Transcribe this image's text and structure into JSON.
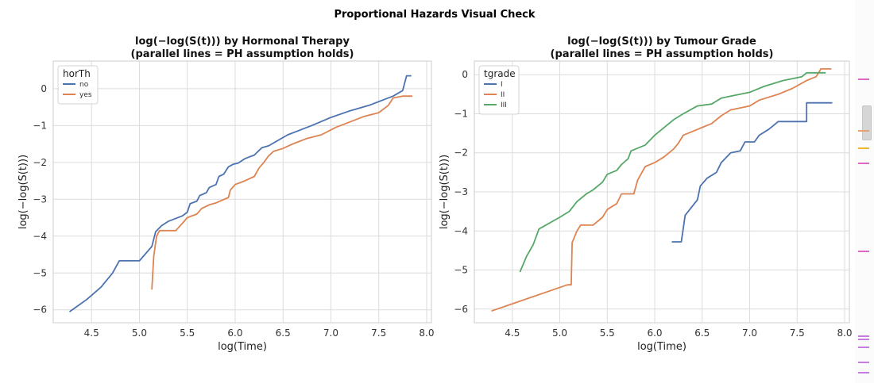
{
  "figure": {
    "suptitle": "Proportional Hazards Visual Check"
  },
  "chart_data": [
    {
      "type": "line",
      "title": "log(−log(S(t))) by Hormonal Therapy",
      "subtitle": "(parallel lines = PH assumption holds)",
      "xlabel": "log(Time)",
      "ylabel": "log(−log(S(t)))",
      "xlim": [
        4.1,
        8.05
      ],
      "ylim": [
        -6.35,
        0.75
      ],
      "xticks": [
        4.5,
        5.0,
        5.5,
        6.0,
        6.5,
        7.0,
        7.5,
        8.0
      ],
      "xtick_labels": [
        "4.5",
        "5.0",
        "5.5",
        "6.0",
        "6.5",
        "7.0",
        "7.5",
        "8.0"
      ],
      "yticks": [
        -6,
        -5,
        -4,
        -3,
        -2,
        -1,
        0
      ],
      "ytick_labels": [
        "−6",
        "−5",
        "−4",
        "−3",
        "−2",
        "−1",
        "0"
      ],
      "grid": true,
      "legend": {
        "title": "horTh",
        "position": "top-left"
      },
      "series": [
        {
          "name": "no",
          "color": "#4c72b0",
          "points": [
            [
              4.27,
              -6.05
            ],
            [
              4.45,
              -5.72
            ],
            [
              4.6,
              -5.38
            ],
            [
              4.72,
              -5.0
            ],
            [
              4.79,
              -4.67
            ],
            [
              5.0,
              -4.67
            ],
            [
              5.13,
              -4.28
            ],
            [
              5.17,
              -3.88
            ],
            [
              5.23,
              -3.72
            ],
            [
              5.3,
              -3.6
            ],
            [
              5.45,
              -3.45
            ],
            [
              5.5,
              -3.35
            ],
            [
              5.53,
              -3.12
            ],
            [
              5.6,
              -3.05
            ],
            [
              5.63,
              -2.9
            ],
            [
              5.7,
              -2.82
            ],
            [
              5.73,
              -2.68
            ],
            [
              5.8,
              -2.6
            ],
            [
              5.83,
              -2.38
            ],
            [
              5.88,
              -2.32
            ],
            [
              5.93,
              -2.12
            ],
            [
              5.98,
              -2.05
            ],
            [
              6.03,
              -2.02
            ],
            [
              6.1,
              -1.9
            ],
            [
              6.15,
              -1.85
            ],
            [
              6.2,
              -1.8
            ],
            [
              6.28,
              -1.6
            ],
            [
              6.35,
              -1.55
            ],
            [
              6.45,
              -1.4
            ],
            [
              6.55,
              -1.25
            ],
            [
              6.65,
              -1.15
            ],
            [
              6.8,
              -1.0
            ],
            [
              7.0,
              -0.78
            ],
            [
              7.2,
              -0.6
            ],
            [
              7.4,
              -0.45
            ],
            [
              7.55,
              -0.3
            ],
            [
              7.65,
              -0.2
            ],
            [
              7.75,
              -0.05
            ],
            [
              7.79,
              0.35
            ],
            [
              7.84,
              0.35
            ]
          ]
        },
        {
          "name": "yes",
          "color": "#dd8452",
          "points": [
            [
              5.13,
              -5.45
            ],
            [
              5.15,
              -4.55
            ],
            [
              5.18,
              -4.0
            ],
            [
              5.21,
              -3.85
            ],
            [
              5.38,
              -3.85
            ],
            [
              5.45,
              -3.65
            ],
            [
              5.5,
              -3.5
            ],
            [
              5.6,
              -3.4
            ],
            [
              5.65,
              -3.25
            ],
            [
              5.73,
              -3.15
            ],
            [
              5.8,
              -3.1
            ],
            [
              5.93,
              -2.95
            ],
            [
              5.95,
              -2.75
            ],
            [
              6.0,
              -2.6
            ],
            [
              6.1,
              -2.5
            ],
            [
              6.2,
              -2.38
            ],
            [
              6.25,
              -2.15
            ],
            [
              6.3,
              -2.0
            ],
            [
              6.35,
              -1.82
            ],
            [
              6.4,
              -1.7
            ],
            [
              6.5,
              -1.62
            ],
            [
              6.6,
              -1.5
            ],
            [
              6.75,
              -1.35
            ],
            [
              6.9,
              -1.25
            ],
            [
              7.05,
              -1.05
            ],
            [
              7.2,
              -0.9
            ],
            [
              7.35,
              -0.75
            ],
            [
              7.5,
              -0.65
            ],
            [
              7.6,
              -0.45
            ],
            [
              7.65,
              -0.25
            ],
            [
              7.75,
              -0.2
            ],
            [
              7.85,
              -0.2
            ]
          ]
        }
      ]
    },
    {
      "type": "line",
      "title": "log(−log(S(t))) by Tumour Grade",
      "subtitle": "(parallel lines = PH assumption holds)",
      "xlabel": "log(Time)",
      "ylabel": "log(−log(S(t)))",
      "xlim": [
        4.1,
        8.05
      ],
      "ylim": [
        -6.35,
        0.35
      ],
      "xticks": [
        4.5,
        5.0,
        5.5,
        6.0,
        6.5,
        7.0,
        7.5,
        8.0
      ],
      "xtick_labels": [
        "4.5",
        "5.0",
        "5.5",
        "6.0",
        "6.5",
        "7.0",
        "7.5",
        "8.0"
      ],
      "yticks": [
        -6,
        -5,
        -4,
        -3,
        -2,
        -1,
        0
      ],
      "ytick_labels": [
        "−6",
        "−5",
        "−4",
        "−3",
        "−2",
        "−1",
        "0"
      ],
      "grid": true,
      "legend": {
        "title": "tgrade",
        "position": "top-left"
      },
      "series": [
        {
          "name": "I",
          "color": "#4c72b0",
          "points": [
            [
              6.18,
              -4.28
            ],
            [
              6.28,
              -4.28
            ],
            [
              6.32,
              -3.6
            ],
            [
              6.45,
              -3.2
            ],
            [
              6.48,
              -2.85
            ],
            [
              6.55,
              -2.65
            ],
            [
              6.65,
              -2.5
            ],
            [
              6.7,
              -2.25
            ],
            [
              6.8,
              -2.0
            ],
            [
              6.9,
              -1.95
            ],
            [
              6.95,
              -1.72
            ],
            [
              7.05,
              -1.72
            ],
            [
              7.1,
              -1.55
            ],
            [
              7.2,
              -1.4
            ],
            [
              7.25,
              -1.3
            ],
            [
              7.3,
              -1.2
            ],
            [
              7.6,
              -1.2
            ],
            [
              7.6,
              -0.72
            ],
            [
              7.87,
              -0.72
            ]
          ]
        },
        {
          "name": "II",
          "color": "#dd8452",
          "points": [
            [
              4.28,
              -6.05
            ],
            [
              5.08,
              -5.38
            ],
            [
              5.12,
              -5.38
            ],
            [
              5.13,
              -4.3
            ],
            [
              5.18,
              -4.0
            ],
            [
              5.22,
              -3.85
            ],
            [
              5.35,
              -3.85
            ],
            [
              5.45,
              -3.65
            ],
            [
              5.5,
              -3.45
            ],
            [
              5.6,
              -3.3
            ],
            [
              5.65,
              -3.05
            ],
            [
              5.78,
              -3.05
            ],
            [
              5.82,
              -2.7
            ],
            [
              5.9,
              -2.35
            ],
            [
              6.0,
              -2.25
            ],
            [
              6.1,
              -2.1
            ],
            [
              6.2,
              -1.9
            ],
            [
              6.25,
              -1.75
            ],
            [
              6.3,
              -1.55
            ],
            [
              6.45,
              -1.4
            ],
            [
              6.6,
              -1.25
            ],
            [
              6.7,
              -1.05
            ],
            [
              6.8,
              -0.9
            ],
            [
              7.0,
              -0.8
            ],
            [
              7.1,
              -0.65
            ],
            [
              7.3,
              -0.5
            ],
            [
              7.45,
              -0.35
            ],
            [
              7.6,
              -0.15
            ],
            [
              7.7,
              -0.05
            ],
            [
              7.75,
              0.15
            ],
            [
              7.86,
              0.15
            ]
          ]
        },
        {
          "name": "III",
          "color": "#55a868",
          "points": [
            [
              4.58,
              -5.05
            ],
            [
              4.65,
              -4.65
            ],
            [
              4.72,
              -4.35
            ],
            [
              4.78,
              -3.95
            ],
            [
              5.0,
              -3.65
            ],
            [
              5.1,
              -3.5
            ],
            [
              5.18,
              -3.25
            ],
            [
              5.28,
              -3.05
            ],
            [
              5.35,
              -2.95
            ],
            [
              5.45,
              -2.75
            ],
            [
              5.5,
              -2.55
            ],
            [
              5.6,
              -2.45
            ],
            [
              5.65,
              -2.3
            ],
            [
              5.72,
              -2.15
            ],
            [
              5.75,
              -1.95
            ],
            [
              5.9,
              -1.8
            ],
            [
              6.0,
              -1.55
            ],
            [
              6.1,
              -1.35
            ],
            [
              6.2,
              -1.15
            ],
            [
              6.3,
              -1.0
            ],
            [
              6.45,
              -0.8
            ],
            [
              6.6,
              -0.75
            ],
            [
              6.7,
              -0.6
            ],
            [
              6.8,
              -0.55
            ],
            [
              7.0,
              -0.45
            ],
            [
              7.15,
              -0.3
            ],
            [
              7.35,
              -0.15
            ],
            [
              7.55,
              -0.05
            ],
            [
              7.6,
              0.05
            ],
            [
              7.8,
              0.05
            ]
          ]
        }
      ]
    }
  ],
  "scrollbar": {
    "marker_colors": [
      "#e066c6",
      "#e8a070",
      "#f0b429",
      "#e066c6",
      "#e066c6",
      "#c77de0",
      "#c77de0",
      "#c77de0",
      "#c77de0",
      "#c77de0"
    ],
    "marker_fracs": [
      0.205,
      0.34,
      0.385,
      0.425,
      0.655,
      0.875,
      0.885,
      0.905,
      0.945,
      0.97
    ]
  }
}
